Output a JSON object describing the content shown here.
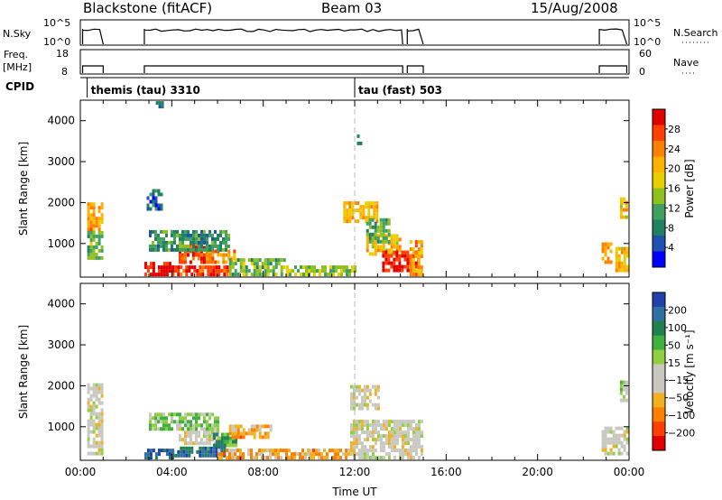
{
  "header": {
    "station": "Blackstone (fitACF)",
    "beam": "Beam 03",
    "date": "15/Aug/2008"
  },
  "status_panels": {
    "nsky_label": "N.Sky",
    "nsky_ticks": [
      "10^5",
      "10^0"
    ],
    "nsearch_label": "N.Search",
    "nsearch_ticks": [
      "10^5",
      "10^0"
    ],
    "freq_label": "Freq.",
    "freq_unit": "[MHz]",
    "freq_ticks": [
      "18",
      "8"
    ],
    "nave_label": "Nave",
    "nave_ticks": [
      "60",
      "0"
    ],
    "cpid_label": "CPID",
    "cpid_segments": [
      {
        "label": "themis (tau) 3310",
        "start_hour": 0.3
      },
      {
        "label": "tau (fast) 503",
        "start_hour": 12.0
      }
    ]
  },
  "chart_data": [
    {
      "type": "heatmap",
      "name": "power-panel",
      "ylabel": "Slant Range [km]",
      "xlabel": "",
      "ylim": [
        180,
        4500
      ],
      "yticks": [
        1000,
        2000,
        3000,
        4000
      ],
      "xlim": [
        0,
        24
      ],
      "colorbar_label": "Power [dB]",
      "colorbar_ticks": [
        "28",
        "24",
        "20",
        "16",
        "12",
        "8",
        "4"
      ],
      "colorbar_colors": [
        "#e00000",
        "#ff4000",
        "#ff8000",
        "#ffb000",
        "#e8d000",
        "#90c020",
        "#40a060",
        "#208060",
        "#2050b0",
        "#0000ff"
      ],
      "patches": [
        {
          "t0": 0.3,
          "t1": 0.9,
          "r0": 1300,
          "r1": 2000,
          "level": 0.7
        },
        {
          "t0": 0.3,
          "t1": 0.9,
          "r0": 600,
          "r1": 1300,
          "level": 0.4
        },
        {
          "t0": 2.8,
          "t1": 4.0,
          "r0": 200,
          "r1": 500,
          "level": 0.95
        },
        {
          "t0": 4.0,
          "t1": 6.5,
          "r0": 200,
          "r1": 400,
          "level": 0.9
        },
        {
          "t0": 4.3,
          "t1": 5.8,
          "r0": 500,
          "r1": 1000,
          "level": 0.85
        },
        {
          "t0": 5.5,
          "t1": 6.8,
          "r0": 500,
          "r1": 800,
          "level": 0.7
        },
        {
          "t0": 3.0,
          "t1": 6.5,
          "r0": 800,
          "r1": 1300,
          "level": 0.3
        },
        {
          "t0": 6.5,
          "t1": 9.0,
          "r0": 200,
          "r1": 600,
          "level": 0.4
        },
        {
          "t0": 9.0,
          "t1": 12.0,
          "r0": 200,
          "r1": 400,
          "level": 0.45
        },
        {
          "t0": 11.5,
          "t1": 13.0,
          "r0": 1500,
          "r1": 2000,
          "level": 0.65
        },
        {
          "t0": 12.5,
          "t1": 14.0,
          "r0": 700,
          "r1": 1200,
          "level": 0.6
        },
        {
          "t0": 13.2,
          "t1": 14.8,
          "r0": 300,
          "r1": 800,
          "level": 0.92
        },
        {
          "t0": 14.4,
          "t1": 14.9,
          "r0": 200,
          "r1": 1000,
          "level": 0.7
        },
        {
          "t0": 12.5,
          "t1": 13.5,
          "r0": 1000,
          "r1": 1600,
          "level": 0.35
        },
        {
          "t0": 2.9,
          "t1": 3.5,
          "r0": 1800,
          "r1": 2300,
          "level": 0.2
        },
        {
          "t0": 3.3,
          "t1": 3.6,
          "r0": 4300,
          "r1": 4450,
          "level": 0.2
        },
        {
          "t0": 12.1,
          "t1": 12.3,
          "r0": 3400,
          "r1": 3600,
          "level": 0.2
        },
        {
          "t0": 22.8,
          "t1": 23.2,
          "r0": 500,
          "r1": 1000,
          "level": 0.7
        },
        {
          "t0": 23.4,
          "t1": 23.9,
          "r0": 300,
          "r1": 900,
          "level": 0.6
        },
        {
          "t0": 23.6,
          "t1": 23.9,
          "r0": 1600,
          "r1": 2100,
          "level": 0.6
        }
      ]
    },
    {
      "type": "heatmap",
      "name": "velocity-panel",
      "ylabel": "Slant Range [km]",
      "xlabel": "Time UT",
      "ylim": [
        180,
        4500
      ],
      "yticks": [
        1000,
        2000,
        3000,
        4000
      ],
      "xlim": [
        0,
        24
      ],
      "xticks": [
        "00:00",
        "04:00",
        "08:00",
        "12:00",
        "16:00",
        "20:00",
        "00:00"
      ],
      "colorbar_label": "Velocity [m s⁻¹]",
      "colorbar_ticks": [
        "200",
        "100",
        "50",
        "15",
        "−15",
        "−50",
        "−100",
        "−200"
      ],
      "colorbar_colors": [
        "#2040b0",
        "#3070a0",
        "#208050",
        "#40b040",
        "#90d040",
        "#c8c8c0",
        "#c8c8c0",
        "#f0b020",
        "#ff8000",
        "#ff4000",
        "#e00000"
      ],
      "patches": [
        {
          "t0": 0.3,
          "t1": 0.9,
          "r0": 300,
          "r1": 2000,
          "level": 0.45
        },
        {
          "t0": 2.8,
          "t1": 4.0,
          "r0": 200,
          "r1": 450,
          "level": 0.88
        },
        {
          "t0": 4.0,
          "t1": 6.3,
          "r0": 250,
          "r1": 450,
          "level": 0.85
        },
        {
          "t0": 4.3,
          "t1": 6.0,
          "r0": 550,
          "r1": 950,
          "level": 0.45
        },
        {
          "t0": 5.8,
          "t1": 6.8,
          "r0": 500,
          "r1": 800,
          "level": 0.72
        },
        {
          "t0": 6.5,
          "t1": 8.3,
          "r0": 700,
          "r1": 1000,
          "level": 0.3
        },
        {
          "t0": 6.0,
          "t1": 11.8,
          "r0": 200,
          "r1": 450,
          "level": 0.3
        },
        {
          "t0": 11.8,
          "t1": 14.9,
          "r0": 200,
          "r1": 1100,
          "level": 0.45
        },
        {
          "t0": 11.8,
          "t1": 13.0,
          "r0": 1400,
          "r1": 2000,
          "level": 0.45
        },
        {
          "t0": 3.0,
          "t1": 6.0,
          "r0": 900,
          "r1": 1300,
          "level": 0.6
        },
        {
          "t0": 22.8,
          "t1": 23.9,
          "r0": 300,
          "r1": 1000,
          "level": 0.45
        },
        {
          "t0": 23.6,
          "t1": 23.9,
          "r0": 1600,
          "r1": 2100,
          "level": 0.55
        }
      ]
    }
  ]
}
